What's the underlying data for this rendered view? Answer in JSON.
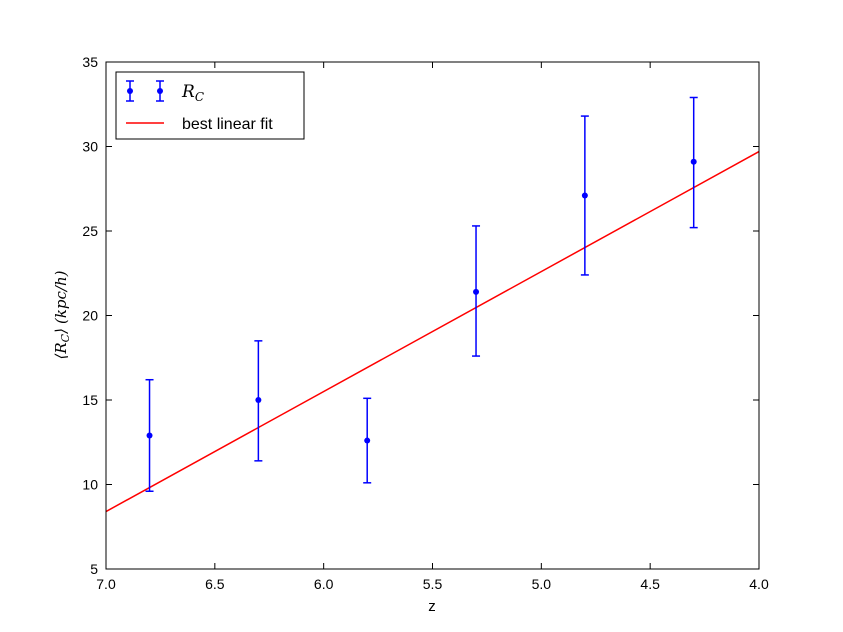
{
  "chart_data": {
    "type": "scatter",
    "title": "",
    "xlabel": "z",
    "ylabel": "⟨R_C⟩ (kpc/h)",
    "xlim": [
      7.0,
      4.0
    ],
    "ylim": [
      5,
      35
    ],
    "x_inverted": true,
    "xticks": [
      "7.0",
      "6.5",
      "6.0",
      "5.5",
      "5.0",
      "4.5",
      "4.0"
    ],
    "yticks": [
      "5",
      "10",
      "15",
      "20",
      "25",
      "30",
      "35"
    ],
    "grid": false,
    "legend_position": "top-left",
    "series": [
      {
        "name": "R_C",
        "kind": "errorbar",
        "color": "#0000ff",
        "x": [
          6.8,
          6.3,
          5.8,
          5.3,
          4.8,
          4.3
        ],
        "y": [
          12.9,
          15.0,
          12.6,
          21.4,
          27.1,
          29.1
        ],
        "yerr_low": [
          9.6,
          11.4,
          10.1,
          17.6,
          22.4,
          25.2
        ],
        "yerr_high": [
          16.2,
          18.5,
          15.1,
          25.3,
          31.8,
          32.9
        ]
      },
      {
        "name": "best linear fit",
        "kind": "line",
        "color": "#ff0000",
        "x": [
          7.0,
          4.0
        ],
        "y": [
          8.4,
          29.7
        ]
      }
    ]
  },
  "legend": {
    "rc_main": "R",
    "rc_sub": "C",
    "fit_label": "best linear fit"
  },
  "ylabel_parts": {
    "open": "⟨",
    "main": "R",
    "sub": "C",
    "close": "⟩",
    "units": "(kpc/h)"
  }
}
